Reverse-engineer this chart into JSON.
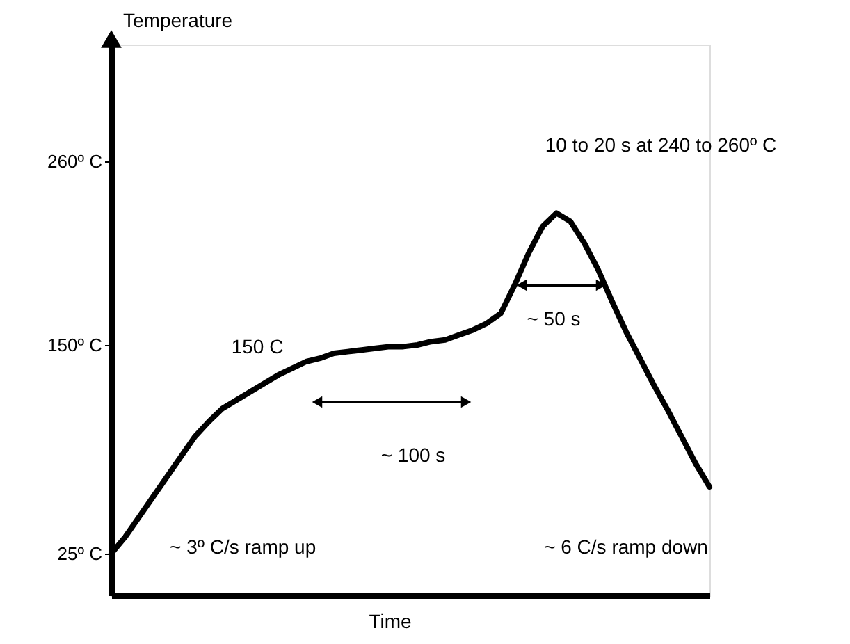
{
  "chart_data": {
    "type": "line",
    "xlabel": "Time",
    "ylabel": "Temperature",
    "categories": [
      null,
      null,
      null,
      null,
      null,
      null,
      null,
      null,
      null,
      null,
      null,
      null,
      null,
      null,
      null,
      null,
      null,
      null,
      null,
      null,
      null,
      null,
      null,
      null,
      null,
      null,
      null,
      null,
      null,
      null,
      null,
      null,
      null,
      null,
      null,
      null,
      null,
      null,
      null,
      null,
      null,
      null,
      null,
      null
    ],
    "values": [
      25,
      35,
      47,
      59,
      71,
      83,
      95,
      104,
      112,
      117,
      122,
      127,
      132,
      136,
      140,
      142,
      145,
      146,
      147,
      148,
      149,
      149,
      150,
      152,
      153,
      156,
      159,
      163,
      169,
      186,
      205,
      221,
      229,
      224,
      211,
      195,
      176,
      158,
      142,
      126,
      111,
      95,
      79,
      65
    ],
    "color": "#000000",
    "line_style": "solid",
    "marker": "none",
    "grid": false,
    "ylim": [
      0,
      330
    ],
    "yticks": [
      {
        "value": 25,
        "label": "25º C"
      },
      {
        "value": 150,
        "label": "150º C"
      },
      {
        "value": 260,
        "label": "260º C"
      }
    ],
    "annotations": [
      "10 to 20 s at 240 to 260º C",
      "150 C",
      "~ 50 s",
      "~ 100 s",
      "~ 3º C/s ramp up",
      "~ 6 C/s ramp down"
    ]
  }
}
